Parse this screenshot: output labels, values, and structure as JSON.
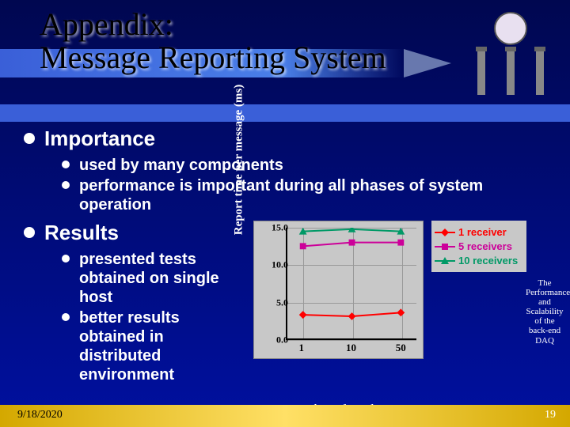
{
  "title": "Appendix:\nMessage Reporting System",
  "sections": {
    "importance": {
      "heading": "Importance",
      "items": [
        "used by many components",
        "performance is important during all phases of system operation"
      ]
    },
    "results": {
      "heading": "Results",
      "items": [
        "presented tests obtained on single host",
        "better results obtained in distributed environment"
      ]
    }
  },
  "chart": {
    "type": "line",
    "ylabel": "Report time per message (ms)",
    "xlabel": "Number of senders",
    "background_color": "#c8c8c8",
    "yticks": [
      0.0,
      5.0,
      10.0,
      15.0
    ],
    "xticks": [
      "1",
      "10",
      "50"
    ],
    "series": [
      {
        "name": "1 receiver",
        "color": "#ff0000",
        "marker": "diamond",
        "values": [
          3.2,
          3.0,
          3.5
        ]
      },
      {
        "name": "5 receivers",
        "color": "#cc0099",
        "marker": "square",
        "values": [
          12.5,
          13.0,
          13.0
        ]
      },
      {
        "name": "10 receivers",
        "color": "#009966",
        "marker": "triangle",
        "values": [
          14.5,
          14.8,
          14.5
        ]
      }
    ],
    "ylim": [
      0,
      15
    ],
    "line_width": 2
  },
  "side_caption": "The Performance and Scalability of the back-end DAQ",
  "footer": {
    "date": "9/18/2020",
    "page": "19"
  }
}
